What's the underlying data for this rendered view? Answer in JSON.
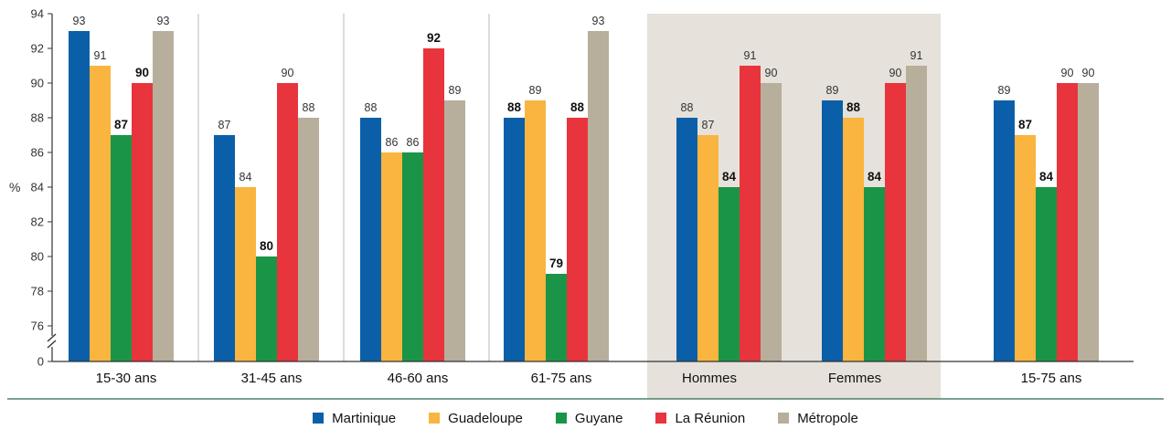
{
  "chart_data": {
    "type": "bar",
    "ylabel": "%",
    "ylim": [
      74,
      94
    ],
    "y_ticks": [
      "0",
      "76",
      "78",
      "80",
      "82",
      "84",
      "86",
      "88",
      "90",
      "92",
      "94"
    ],
    "axis_break": true,
    "grid": false,
    "legend_position": "bottom",
    "categories": [
      "15-30 ans",
      "31-45 ans",
      "46-60 ans",
      "61-75 ans",
      "Hommes",
      "Femmes",
      "15-75 ans"
    ],
    "highlighted_categories": [
      "Hommes",
      "Femmes"
    ],
    "series": [
      {
        "name": "Martinique",
        "color": "#0a5fa8",
        "values": [
          93,
          87,
          88,
          88,
          88,
          89,
          89
        ],
        "bold_labels": [
          false,
          false,
          false,
          true,
          false,
          false,
          false
        ]
      },
      {
        "name": "Guadeloupe",
        "color": "#f9b53f",
        "values": [
          91,
          84,
          86,
          89,
          87,
          88,
          87
        ],
        "bold_labels": [
          false,
          false,
          false,
          false,
          false,
          true,
          true
        ]
      },
      {
        "name": "Guyane",
        "color": "#1a9548",
        "values": [
          87,
          80,
          86,
          79,
          84,
          84,
          84
        ],
        "bold_labels": [
          true,
          true,
          false,
          true,
          true,
          true,
          true
        ]
      },
      {
        "name": "La Réunion",
        "color": "#e8343c",
        "values": [
          90,
          90,
          92,
          88,
          91,
          90,
          90
        ],
        "bold_labels": [
          true,
          false,
          true,
          true,
          false,
          false,
          false
        ]
      },
      {
        "name": "Métropole",
        "color": "#b7ae9c",
        "values": [
          93,
          88,
          89,
          93,
          90,
          91,
          90
        ],
        "bold_labels": [
          false,
          false,
          false,
          false,
          false,
          false,
          false
        ]
      }
    ]
  },
  "colors": {
    "highlight_band": "#e6e1da",
    "axis": "#333333",
    "separator": "#b8b8b8",
    "footer_rule": "#2e6b4f"
  }
}
